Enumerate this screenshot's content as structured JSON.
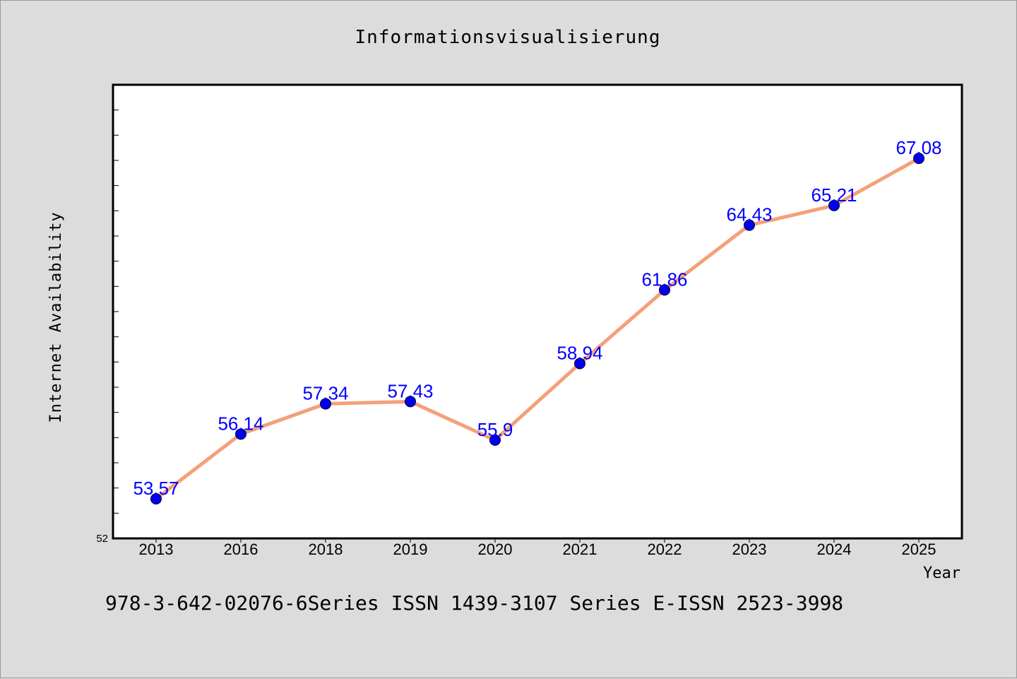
{
  "chart_data": {
    "type": "line",
    "title": "Informationsvisualisierung",
    "xlabel": "Year",
    "ylabel": "Internet Availability",
    "categories": [
      "2013",
      "2016",
      "2018",
      "2019",
      "2020",
      "2021",
      "2022",
      "2023",
      "2024",
      "2025"
    ],
    "series": [
      {
        "values": [
          53.57,
          56.14,
          57.34,
          57.43,
          55.9,
          58.94,
          61.86,
          64.43,
          65.21,
          67.08
        ],
        "labels": [
          "53.57",
          "56.14",
          "57.34",
          "57.43",
          "55.9",
          "58.94",
          "61.86",
          "64.43",
          "65.21",
          "67.08"
        ],
        "line_color": "#f4a07a",
        "marker_color": "#0000ee"
      }
    ],
    "ylim": [
      52,
      70
    ],
    "y_tick_labels": [
      "52"
    ],
    "data_label_color": "#0000ff",
    "grid": false,
    "legend": "none"
  },
  "footer": "978-3-642-02076-6Series ISSN 1439-3107 Series E-ISSN 2523-3998"
}
